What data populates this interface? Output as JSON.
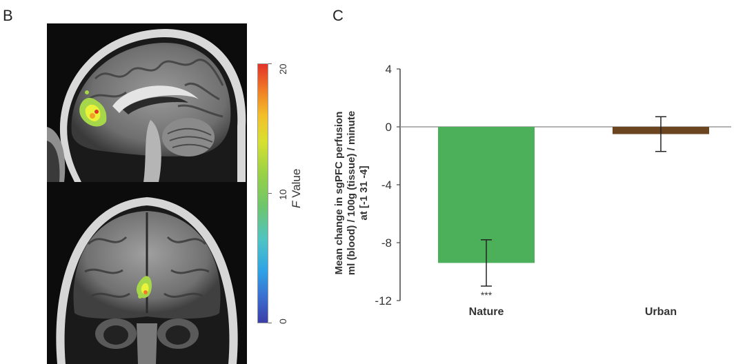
{
  "panels": {
    "left_letter": "B",
    "right_letter": "C"
  },
  "colorbar": {
    "title_italic": "F",
    "title_rest": " Value",
    "min": 0,
    "max": 20,
    "tick_labels": [
      "0",
      "10",
      "20"
    ],
    "colors": [
      "#3b3ea8",
      "#2fa3e6",
      "#6ec56b",
      "#d8e031",
      "#f07c25",
      "#e3322a"
    ]
  },
  "chart_data": {
    "type": "bar",
    "categories": [
      "Nature",
      "Urban"
    ],
    "values": [
      -9.4,
      -0.5
    ],
    "errors": [
      1.6,
      1.2
    ],
    "bar_colors": [
      "#4caf5a",
      "#6b4520"
    ],
    "significance": [
      "***",
      ""
    ],
    "ylabel_lines": [
      "Mean change in sgPFC perfusion",
      "ml (blood) / 100g (tissue) / minute",
      "at [-1 31 -4]"
    ],
    "ylim": [
      -12,
      4
    ],
    "yticks": [
      4,
      0,
      -4,
      -8,
      -12
    ],
    "grid": false
  }
}
